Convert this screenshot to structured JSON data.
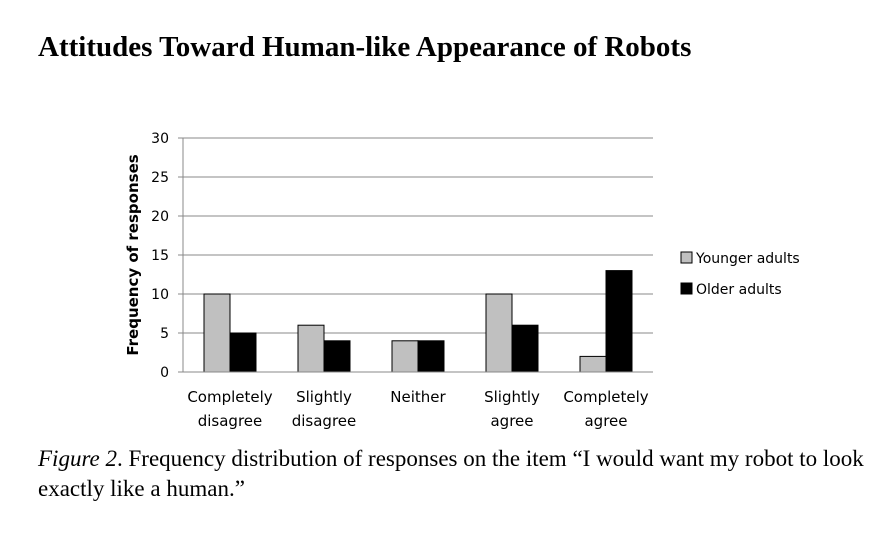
{
  "chart_data": {
    "type": "bar",
    "title": "Attitudes Toward Human-like Appearance of Robots",
    "ylabel": "Frequency of responses",
    "categories": [
      "Completely disagree",
      "Slightly disagree",
      "Neither",
      "Slightly agree",
      "Completely agree"
    ],
    "series": [
      {
        "name": "Younger adults",
        "color": "#c0c0c0",
        "values": [
          10,
          6,
          4,
          10,
          2
        ]
      },
      {
        "name": "Older adults",
        "color": "#000000",
        "values": [
          5,
          4,
          4,
          6,
          13
        ]
      }
    ],
    "ylim": [
      0,
      30
    ],
    "yticks": [
      0,
      5,
      10,
      15,
      20,
      25,
      30
    ],
    "grid": true,
    "legend": "right"
  },
  "caption": {
    "label": "Figure 2",
    "text": ". Frequency distribution of responses on the item “I would want my robot to look exactly like a human.”"
  }
}
